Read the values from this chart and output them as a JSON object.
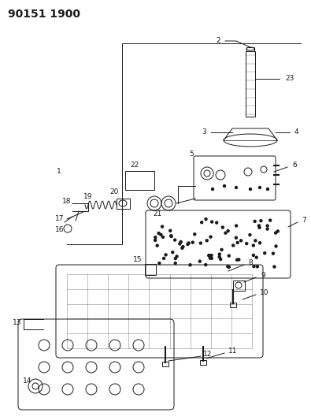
{
  "title": "90151 1900",
  "bg_color": "#ffffff",
  "line_color": "#1a1a1a",
  "title_fontsize": 10,
  "label_fontsize": 6.5,
  "fig_width": 3.95,
  "fig_height": 5.33,
  "dpi": 100
}
